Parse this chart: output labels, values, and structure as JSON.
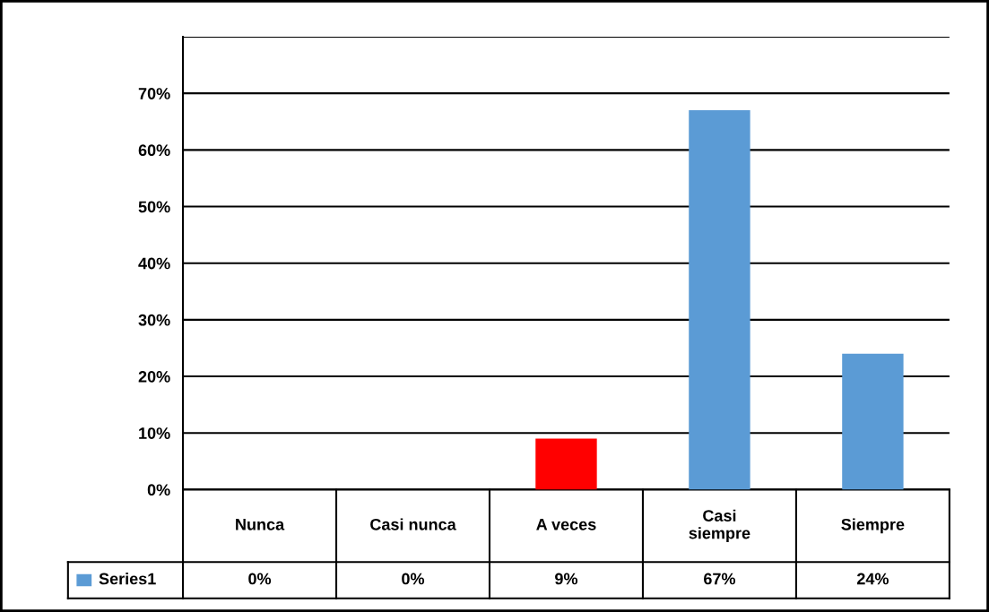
{
  "chart_data": {
    "type": "bar",
    "categories": [
      "Nunca",
      "Casi nunca",
      "A veces",
      "Casi\nsiempre",
      "Siempre"
    ],
    "series": [
      {
        "name": "Series1",
        "color": "#5b9bd5",
        "colors": [
          "#00853f",
          "#c89a00",
          "#ff0000",
          "#5b9bd5",
          "#5b9bd5"
        ],
        "values": [
          0,
          0,
          9,
          67,
          24
        ],
        "value_labels": [
          "0%",
          "0%",
          "9%",
          "67%",
          "24%"
        ]
      }
    ],
    "ylim": [
      0,
      80
    ],
    "yticks": [
      {
        "value": 0,
        "label": "0%"
      },
      {
        "value": 10,
        "label": "10%"
      },
      {
        "value": 20,
        "label": "20%"
      },
      {
        "value": 30,
        "label": "30%"
      },
      {
        "value": 40,
        "label": "40%"
      },
      {
        "value": 50,
        "label": "50%"
      },
      {
        "value": 60,
        "label": "60%"
      },
      {
        "value": 70,
        "label": "70%"
      },
      {
        "value": 80,
        "label": null
      }
    ],
    "grid": "y"
  }
}
